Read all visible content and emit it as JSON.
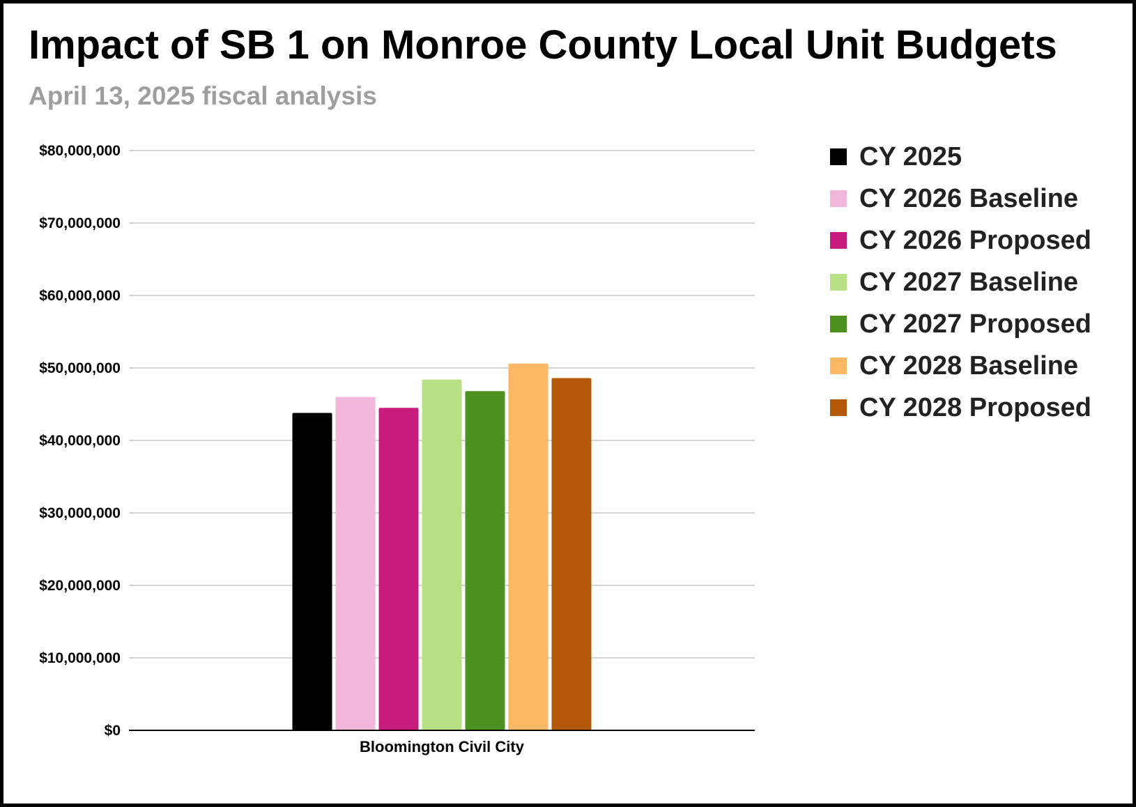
{
  "chart_data": {
    "type": "bar",
    "title": "Impact of SB 1 on Monroe County Local Unit Budgets",
    "subtitle": "April 13, 2025 fiscal analysis",
    "categories": [
      "Bloomington Civil City"
    ],
    "series": [
      {
        "name": "CY 2025",
        "color": "#000000",
        "values": [
          43800000
        ]
      },
      {
        "name": "CY 2026 Baseline",
        "color": "#f2b6da",
        "values": [
          46000000
        ]
      },
      {
        "name": "CY 2026 Proposed",
        "color": "#c71b7e",
        "values": [
          44500000
        ]
      },
      {
        "name": "CY 2027 Baseline",
        "color": "#b8e186",
        "values": [
          48400000
        ]
      },
      {
        "name": "CY 2027 Proposed",
        "color": "#4d9221",
        "values": [
          46800000
        ]
      },
      {
        "name": "CY 2028 Baseline",
        "color": "#fdb863",
        "values": [
          50600000
        ]
      },
      {
        "name": "CY 2028 Proposed",
        "color": "#b35806",
        "values": [
          48600000
        ]
      }
    ],
    "y_ticks": [
      "$0",
      "$10,000,000",
      "$20,000,000",
      "$30,000,000",
      "$40,000,000",
      "$50,000,000",
      "$60,000,000",
      "$70,000,000",
      "$80,000,000"
    ],
    "ylim": [
      0,
      80000000
    ],
    "y_tick_step": 10000000,
    "xlabel": "",
    "ylabel": "",
    "grid": true,
    "legend_position": "right"
  }
}
